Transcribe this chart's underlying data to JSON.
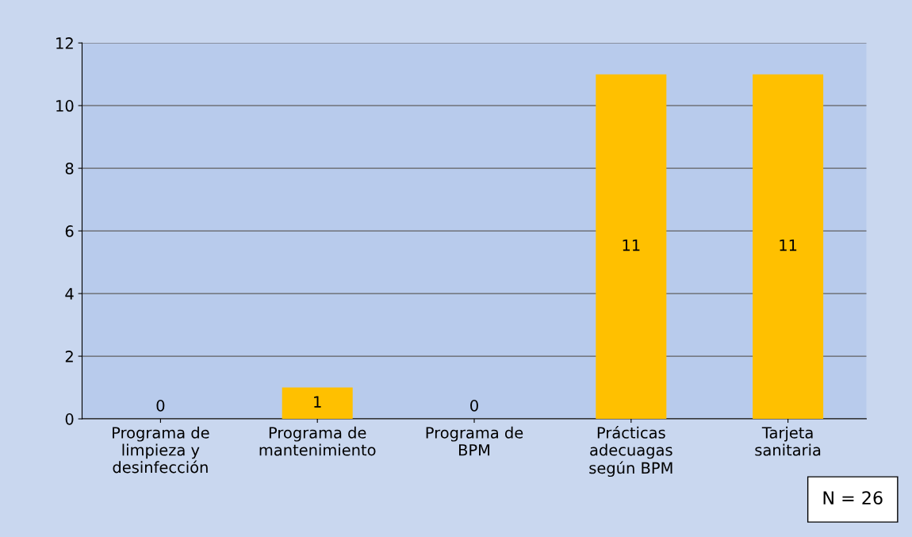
{
  "chart_data": {
    "type": "bar",
    "categories": [
      "Programa de\nlimpieza y\ndesinfección",
      "Programa de\nmantenimiento",
      "Programa de\nBPM",
      "Prácticas\nadecuagas\nsegún BPM",
      "Tarjeta\nsanitaria"
    ],
    "values": [
      0,
      1,
      0,
      11,
      11
    ],
    "color": "#ffc000",
    "ylim": [
      0,
      12
    ],
    "yticks": [
      0,
      2,
      4,
      6,
      8,
      10,
      12
    ],
    "grid": "y",
    "data_labels": true,
    "annotations": [
      "N = 26"
    ]
  }
}
